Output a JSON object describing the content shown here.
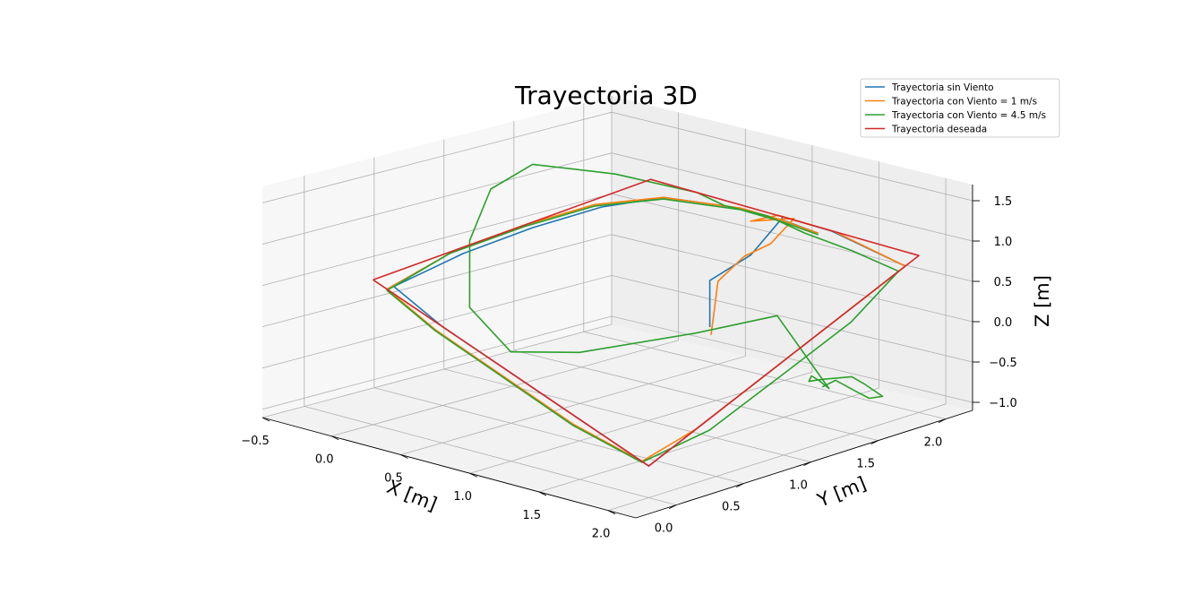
{
  "chart_data": {
    "type": "line",
    "projection": "3d",
    "title": "Trayectoria 3D",
    "xlabel": "X [m]",
    "ylabel": "Y [m]",
    "zlabel": "Z [m]",
    "xlim": [
      -0.5,
      2.2
    ],
    "ylim": [
      -0.3,
      2.2
    ],
    "zlim": [
      -1.1,
      1.7
    ],
    "xticks": [
      "−0.5",
      "0.0",
      "0.5",
      "1.0",
      "1.5",
      "2.0"
    ],
    "yticks": [
      "0.0",
      "0.5",
      "1.0",
      "1.5",
      "2.0"
    ],
    "zticks": [
      "−1.0",
      "−0.5",
      "0.0",
      "0.5",
      "1.0",
      "1.5"
    ],
    "grid": true,
    "legend_position": "top-right",
    "series": [
      {
        "name": "Trayectoria sin Viento",
        "color": "#1f77b4",
        "points": [
          [
            0.85,
            1.6,
            -0.2
          ],
          [
            0.85,
            1.6,
            0.45
          ],
          [
            0.9,
            1.85,
            0.6
          ],
          [
            1.02,
            1.97,
            1.05
          ],
          [
            1.4,
            1.95,
            1.08
          ],
          [
            2.0,
            1.9,
            1.0
          ],
          [
            2.0,
            1.2,
            1.0
          ],
          [
            2.0,
            0.35,
            1.0
          ],
          [
            2.0,
            0.0,
            1.0
          ],
          [
            1.5,
            0.0,
            1.0
          ],
          [
            1.0,
            0.0,
            1.0
          ],
          [
            0.5,
            0.0,
            1.0
          ],
          [
            0.1,
            0.05,
            1.0
          ],
          [
            0.05,
            0.6,
            1.0
          ],
          [
            0.05,
            1.1,
            1.0
          ],
          [
            0.1,
            1.55,
            1.0
          ],
          [
            0.25,
            1.85,
            1.0
          ],
          [
            0.7,
            1.97,
            1.0
          ],
          [
            1.05,
            1.97,
            1.0
          ],
          [
            1.3,
            1.95,
            1.0
          ]
        ]
      },
      {
        "name": "Trayectoria con Viento = 1 m/s",
        "color": "#ff7f0e",
        "points": [
          [
            0.88,
            1.58,
            -0.28
          ],
          [
            0.86,
            1.65,
            0.4
          ],
          [
            0.95,
            1.75,
            0.7
          ],
          [
            1.15,
            1.75,
            1.0
          ],
          [
            1.12,
            1.95,
            1.1
          ],
          [
            0.9,
            1.85,
            1.05
          ],
          [
            1.0,
            1.95,
            1.08
          ],
          [
            1.4,
            1.97,
            1.05
          ],
          [
            2.0,
            1.9,
            1.0
          ],
          [
            2.0,
            1.2,
            1.0
          ],
          [
            2.0,
            0.35,
            1.0
          ],
          [
            1.95,
            0.0,
            1.0
          ],
          [
            1.5,
            -0.05,
            1.0
          ],
          [
            1.0,
            -0.05,
            1.0
          ],
          [
            0.5,
            -0.05,
            1.0
          ],
          [
            0.1,
            0.0,
            1.0
          ],
          [
            0.0,
            0.6,
            1.0
          ],
          [
            0.0,
            1.1,
            1.0
          ],
          [
            0.05,
            1.55,
            1.0
          ],
          [
            0.25,
            1.85,
            1.0
          ],
          [
            0.7,
            1.97,
            1.0
          ],
          [
            1.0,
            1.97,
            1.0
          ],
          [
            1.3,
            1.95,
            1.0
          ]
        ]
      },
      {
        "name": "Trayectoria con Viento = 4.5 m/s",
        "color": "#2ca02c",
        "points": [
          [
            1.3,
            1.98,
            -1.05
          ],
          [
            1.4,
            1.98,
            -0.92
          ],
          [
            1.55,
            1.98,
            -1.0
          ],
          [
            1.65,
            1.98,
            -1.05
          ],
          [
            1.75,
            1.98,
            -0.98
          ],
          [
            1.62,
            1.98,
            -0.88
          ],
          [
            1.52,
            1.98,
            -0.82
          ],
          [
            1.42,
            1.98,
            -0.88
          ],
          [
            1.3,
            1.98,
            -0.95
          ],
          [
            1.2,
            1.98,
            -1.02
          ],
          [
            1.22,
            1.98,
            -0.94
          ],
          [
            1.28,
            1.98,
            -0.98
          ],
          [
            1.35,
            1.98,
            -1.05
          ],
          [
            1.4,
            1.55,
            0.35
          ],
          [
            1.3,
            1.05,
            0.6
          ],
          [
            1.1,
            0.4,
            0.95
          ],
          [
            1.0,
            0.0,
            1.5
          ],
          [
            0.7,
            0.0,
            1.75
          ],
          [
            0.4,
            0.3,
            1.95
          ],
          [
            0.15,
            0.7,
            1.95
          ],
          [
            0.05,
            1.1,
            1.85
          ],
          [
            0.2,
            1.55,
            1.5
          ],
          [
            0.5,
            1.85,
            1.2
          ],
          [
            0.6,
            1.95,
            1.0
          ],
          [
            0.9,
            1.97,
            1.0
          ],
          [
            1.2,
            1.95,
            0.95
          ],
          [
            1.55,
            1.95,
            0.9
          ],
          [
            1.95,
            1.9,
            0.9
          ],
          [
            2.05,
            1.45,
            0.9
          ],
          [
            2.05,
            1.0,
            0.9
          ],
          [
            2.05,
            0.4,
            0.92
          ],
          [
            1.95,
            0.0,
            0.95
          ],
          [
            1.5,
            -0.05,
            0.95
          ],
          [
            1.0,
            -0.05,
            0.97
          ],
          [
            0.5,
            -0.05,
            0.98
          ],
          [
            0.1,
            0.0,
            0.98
          ],
          [
            0.0,
            0.55,
            0.98
          ],
          [
            0.0,
            1.1,
            0.98
          ],
          [
            0.05,
            1.55,
            0.98
          ],
          [
            0.25,
            1.85,
            0.98
          ],
          [
            0.7,
            1.97,
            0.98
          ],
          [
            1.0,
            1.97,
            0.98
          ],
          [
            1.3,
            1.95,
            0.98
          ]
        ]
      },
      {
        "name": "Trayectoria deseada",
        "color": "#d62728",
        "points": [
          [
            0.0,
            0.0,
            1.0
          ],
          [
            2.0,
            0.0,
            1.0
          ],
          [
            2.0,
            2.0,
            1.0
          ],
          [
            0.0,
            2.0,
            1.0
          ],
          [
            0.0,
            0.0,
            1.0
          ]
        ]
      }
    ]
  }
}
